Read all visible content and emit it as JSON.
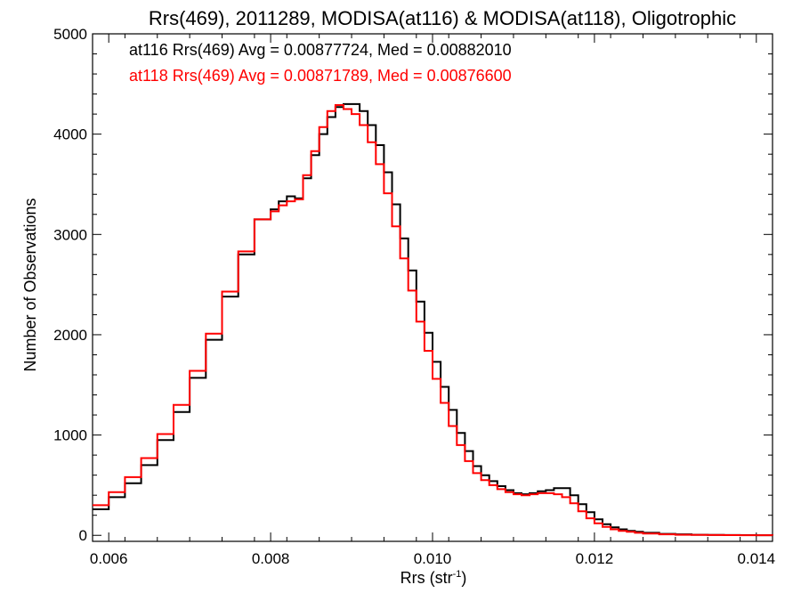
{
  "chart_data": {
    "type": "line",
    "title": "Rrs(469), 2011289, MODISA(at116) & MODISA(at118), Oligotrophic",
    "xlabel_main": "Rrs (str",
    "xlabel_sup": "-1",
    "xlabel_close": ")",
    "ylabel": "Number of Observations",
    "xlim": [
      0.0058,
      0.0142
    ],
    "ylim": [
      -60,
      5000
    ],
    "x_ticks": [
      0.006,
      0.008,
      0.01,
      0.012,
      0.014
    ],
    "x_tick_labels": [
      "0.006",
      "0.008",
      "0.010",
      "0.012",
      "0.014"
    ],
    "y_ticks": [
      0,
      1000,
      2000,
      3000,
      4000,
      5000
    ],
    "y_tick_labels": [
      "0",
      "1000",
      "2000",
      "3000",
      "4000",
      "5000"
    ],
    "grid": false,
    "step": true,
    "series": [
      {
        "name": "at116",
        "color": "#000000",
        "annotation": "at116 Rrs(469) Avg = 0.00877724, Med = 0.00882010",
        "x": [
          0.0058,
          0.006,
          0.0062,
          0.0064,
          0.0066,
          0.0068,
          0.007,
          0.0072,
          0.0074,
          0.0076,
          0.0078,
          0.008,
          0.0081,
          0.0082,
          0.0083,
          0.0084,
          0.0085,
          0.0086,
          0.0087,
          0.0088,
          0.0089,
          0.009,
          0.0091,
          0.0092,
          0.0093,
          0.0094,
          0.0095,
          0.0096,
          0.0097,
          0.0098,
          0.0099,
          0.01,
          0.0101,
          0.0102,
          0.0103,
          0.0104,
          0.0105,
          0.0106,
          0.0107,
          0.0108,
          0.0109,
          0.011,
          0.0111,
          0.0112,
          0.0113,
          0.0114,
          0.0115,
          0.0116,
          0.0117,
          0.0118,
          0.0119,
          0.012,
          0.0121,
          0.0122,
          0.0123,
          0.0124,
          0.0125,
          0.0126,
          0.0128,
          0.013,
          0.0132,
          0.0134,
          0.0136,
          0.0138,
          0.014,
          0.0142
        ],
        "y": [
          260,
          380,
          520,
          700,
          950,
          1230,
          1570,
          1950,
          2380,
          2800,
          3150,
          3250,
          3330,
          3380,
          3360,
          3560,
          3790,
          4000,
          4170,
          4270,
          4300,
          4300,
          4230,
          4090,
          3890,
          3620,
          3300,
          2960,
          2640,
          2330,
          2020,
          1730,
          1480,
          1250,
          1020,
          840,
          690,
          600,
          540,
          490,
          450,
          420,
          410,
          420,
          440,
          450,
          470,
          470,
          400,
          310,
          230,
          160,
          110,
          80,
          60,
          45,
          35,
          25,
          15,
          10,
          6,
          4,
          3,
          2,
          1,
          0
        ]
      },
      {
        "name": "at118",
        "color": "#ff0000",
        "annotation": "at118 Rrs(469) Avg = 0.00871789, Med = 0.00876600",
        "x": [
          0.0058,
          0.006,
          0.0062,
          0.0064,
          0.0066,
          0.0068,
          0.007,
          0.0072,
          0.0074,
          0.0076,
          0.0078,
          0.008,
          0.0081,
          0.0082,
          0.0083,
          0.0084,
          0.0085,
          0.0086,
          0.0087,
          0.0088,
          0.0089,
          0.009,
          0.0091,
          0.0092,
          0.0093,
          0.0094,
          0.0095,
          0.0096,
          0.0097,
          0.0098,
          0.0099,
          0.01,
          0.0101,
          0.0102,
          0.0103,
          0.0104,
          0.0105,
          0.0106,
          0.0107,
          0.0108,
          0.0109,
          0.011,
          0.0111,
          0.0112,
          0.0113,
          0.0114,
          0.0115,
          0.0116,
          0.0117,
          0.0118,
          0.0119,
          0.012,
          0.0121,
          0.0122,
          0.0123,
          0.0124,
          0.0125,
          0.0126,
          0.0128,
          0.013,
          0.0132,
          0.0134,
          0.0136,
          0.0138,
          0.014,
          0.0142
        ],
        "y": [
          300,
          430,
          580,
          770,
          1010,
          1300,
          1640,
          2010,
          2430,
          2830,
          3150,
          3230,
          3290,
          3330,
          3350,
          3590,
          3830,
          4070,
          4230,
          4290,
          4250,
          4200,
          4090,
          3920,
          3700,
          3410,
          3080,
          2760,
          2440,
          2130,
          1840,
          1560,
          1320,
          1090,
          900,
          740,
          620,
          550,
          500,
          460,
          430,
          410,
          400,
          410,
          420,
          420,
          410,
          380,
          320,
          240,
          170,
          120,
          85,
          60,
          45,
          35,
          25,
          18,
          10,
          6,
          4,
          3,
          2,
          1,
          1,
          0
        ]
      }
    ]
  }
}
